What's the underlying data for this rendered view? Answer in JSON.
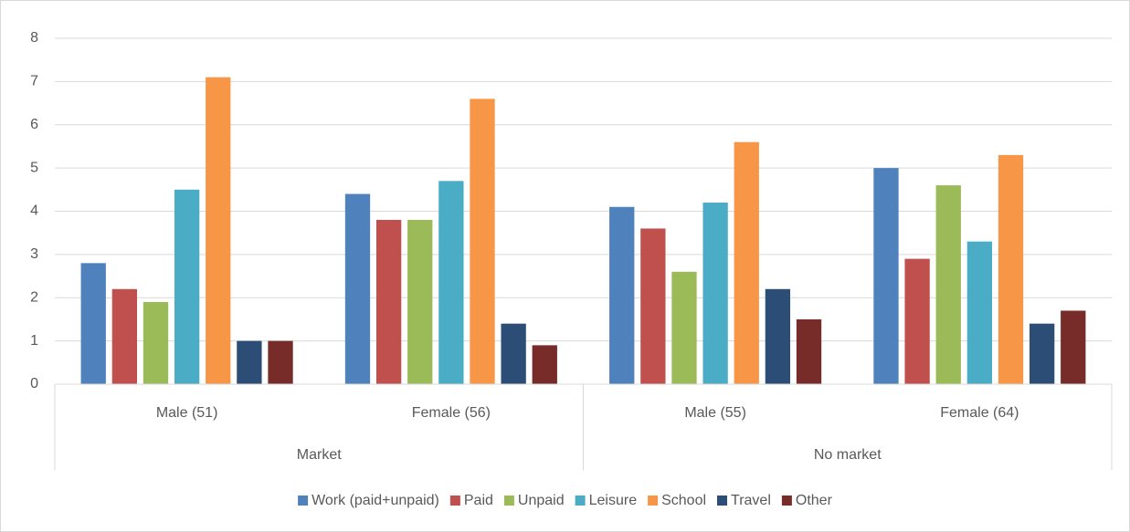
{
  "chart_data": {
    "type": "bar",
    "category_groups": [
      {
        "label": "Market",
        "categories": [
          "Male (51)",
          "Female (56)"
        ]
      },
      {
        "label": "No market",
        "categories": [
          "Male (55)",
          "Female (64)"
        ]
      }
    ],
    "series": [
      {
        "name": "Work (paid+unpaid)",
        "color": "#4f81bd",
        "values": [
          2.8,
          4.4,
          4.1,
          5.0
        ]
      },
      {
        "name": "Paid",
        "color": "#c0504d",
        "values": [
          2.2,
          3.8,
          3.6,
          2.9
        ]
      },
      {
        "name": "Unpaid",
        "color": "#9bbb59",
        "values": [
          1.9,
          3.8,
          2.6,
          4.6
        ]
      },
      {
        "name": "Leisure",
        "color": "#4bacc6",
        "values": [
          4.5,
          4.7,
          4.2,
          3.3
        ]
      },
      {
        "name": "School",
        "color": "#f79646",
        "values": [
          7.1,
          6.6,
          5.6,
          5.3
        ]
      },
      {
        "name": "Travel",
        "color": "#2c4d75",
        "values": [
          1.0,
          1.4,
          2.2,
          1.4
        ]
      },
      {
        "name": "Other",
        "color": "#772c2a",
        "values": [
          1.0,
          0.9,
          1.5,
          1.7
        ]
      }
    ],
    "ylim": [
      0,
      8
    ],
    "yticks": [
      0,
      1,
      2,
      3,
      4,
      5,
      6,
      7,
      8
    ],
    "grid": true,
    "legend": "bottom"
  }
}
